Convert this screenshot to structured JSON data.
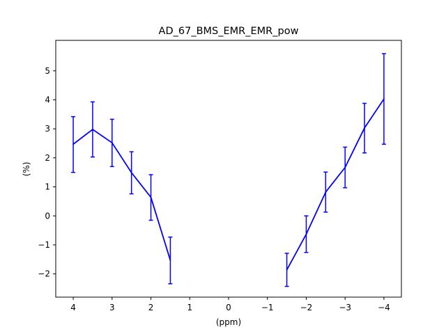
{
  "chart_data": {
    "type": "line",
    "title": "AD_67_BMS_EMR_EMR_pow",
    "xlabel": "(ppm)",
    "ylabel": "(%)",
    "xlim": [
      4.45,
      -4.45
    ],
    "ylim": [
      -2.8,
      6.05
    ],
    "x_ticks": [
      4,
      3,
      2,
      1,
      0,
      -1,
      -2,
      -3,
      -4
    ],
    "x_tick_labels": [
      "4",
      "3",
      "2",
      "1",
      "0",
      "−1",
      "−2",
      "−3",
      "−4"
    ],
    "y_ticks": [
      -2,
      -1,
      0,
      1,
      2,
      3,
      4,
      5
    ],
    "y_tick_labels": [
      "−2",
      "−1",
      "0",
      "1",
      "2",
      "3",
      "4",
      "5"
    ],
    "grid": false,
    "color": "#0000ff",
    "series": [
      {
        "x": [
          4,
          3.5,
          3,
          2.5,
          2,
          1.5
        ],
        "y": [
          2.47,
          2.98,
          2.52,
          1.49,
          0.64,
          -1.53
        ],
        "yerr_low": [
          1.5,
          2.03,
          1.7,
          0.76,
          -0.15,
          -2.34
        ],
        "yerr_high": [
          3.42,
          3.93,
          3.33,
          2.21,
          1.42,
          -0.73
        ]
      },
      {
        "x": [
          -1.5,
          -2,
          -2.5,
          -3,
          -3.5,
          -4
        ],
        "y": [
          -1.86,
          -0.63,
          0.82,
          1.67,
          3.03,
          4.03
        ],
        "yerr_low": [
          -2.43,
          -1.26,
          0.13,
          0.97,
          2.17,
          2.47
        ],
        "yerr_high": [
          -1.29,
          0.0,
          1.51,
          2.37,
          3.88,
          5.59
        ]
      }
    ]
  }
}
